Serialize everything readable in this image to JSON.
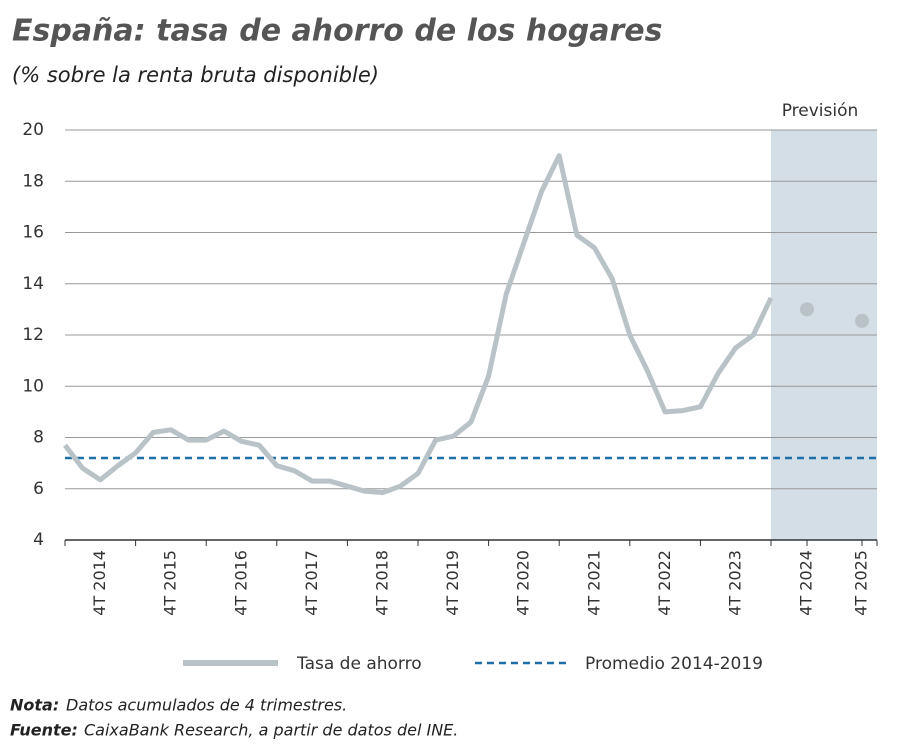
{
  "chart_data": {
    "type": "line",
    "title": "España: tasa de ahorro de los hogares",
    "subtitle": "(% sobre la renta bruta disponible)",
    "annotation": "Previsión",
    "categories": [
      null,
      null,
      null,
      null,
      "4T 2014",
      null,
      null,
      null,
      "4T 2015",
      null,
      null,
      null,
      "4T 2016",
      null,
      null,
      null,
      "4T 2017",
      null,
      null,
      null,
      "4T 2018",
      null,
      null,
      null,
      "4T 2019",
      null,
      null,
      null,
      "4T 2020",
      null,
      null,
      null,
      "4T 2021",
      null,
      null,
      null,
      "4T 2022",
      null,
      null,
      null,
      "4T 2023",
      "4T 2024",
      "4T 2025"
    ],
    "series": [
      {
        "name": "Tasa de ahorro",
        "color": "#b9c3c7",
        "values": [
          7.7,
          6.8,
          6.35,
          6.9,
          7.4,
          8.2,
          8.3,
          7.9,
          7.9,
          8.25,
          7.85,
          7.7,
          6.9,
          6.7,
          6.3,
          6.3,
          6.1,
          5.9,
          5.85,
          6.1,
          6.6,
          7.9,
          8.05,
          8.6,
          10.4,
          13.6,
          15.6,
          17.6,
          19.0,
          15.9,
          15.4,
          14.2,
          12.0,
          10.6,
          9.0,
          9.05,
          9.2,
          10.5,
          11.5,
          12.0,
          13.45,
          null,
          null
        ]
      },
      {
        "color": "#b9c3c7",
        "values": [
          null,
          null,
          null,
          null,
          null,
          null,
          null,
          null,
          null,
          null,
          null,
          null,
          null,
          null,
          null,
          null,
          null,
          null,
          null,
          null,
          null,
          null,
          null,
          null,
          null,
          null,
          null,
          null,
          null,
          null,
          null,
          null,
          null,
          null,
          null,
          null,
          null,
          null,
          null,
          null,
          null,
          13.0,
          12.55
        ]
      }
    ],
    "reference_lines": [
      {
        "name": "Promedio 2014-2019",
        "value": 7.2,
        "color": "#1f6fa8"
      }
    ],
    "ylim": [
      4,
      20
    ],
    "yticks": [
      4,
      6,
      8,
      10,
      12,
      14,
      16,
      18,
      20
    ],
    "grid": true,
    "notes": [
      {
        "label": "Nota:",
        "text": "Datos acumulados de 4 trimestres."
      },
      {
        "label": "Fuente:",
        "text": "CaixaBank Research, a partir de datos del INE."
      }
    ]
  }
}
